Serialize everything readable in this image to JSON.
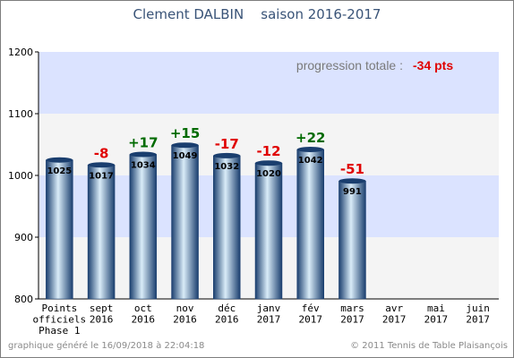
{
  "title_text": "Clement DALBIN    saison 2016-2017",
  "footer": {
    "left": "graphique généré le 16/09/2018 à 22:04:18",
    "right": "© 2011 Tennis de Table Plaisançois"
  },
  "progression": {
    "label": "progression totale :",
    "value": "-34 pts"
  },
  "colors": {
    "positive": "#006a00",
    "negative": "#e00000",
    "band": "#dbe3ff",
    "band_alt": "#f4f4f4",
    "bar_dark": "#1a3e6e",
    "bar_light": "#d9ecf8"
  },
  "chart_data": {
    "type": "bar",
    "ylim": [
      800,
      1200
    ],
    "yticks": [
      800,
      900,
      1000,
      1100,
      1200
    ],
    "categories": [
      [
        "Points",
        "officiels",
        "Phase 1"
      ],
      [
        "sept",
        "2016"
      ],
      [
        "oct",
        "2016"
      ],
      [
        "nov",
        "2016"
      ],
      [
        "déc",
        "2016"
      ],
      [
        "janv",
        "2017"
      ],
      [
        "fév",
        "2017"
      ],
      [
        "mars",
        "2017"
      ],
      [
        "avr",
        "2017"
      ],
      [
        "mai",
        "2017"
      ],
      [
        "juin",
        "2017"
      ]
    ],
    "values": [
      1025,
      1017,
      1034,
      1049,
      1032,
      1020,
      1042,
      991,
      null,
      null,
      null
    ],
    "value_labels": [
      "1025",
      "1017",
      "1034",
      "1049",
      "1032",
      "1020",
      "1042",
      "991",
      "",
      "",
      ""
    ],
    "changes": [
      "",
      "-8",
      "+17",
      "+15",
      "-17",
      "-12",
      "+22",
      "-51",
      "",
      "",
      ""
    ],
    "grid": true
  }
}
